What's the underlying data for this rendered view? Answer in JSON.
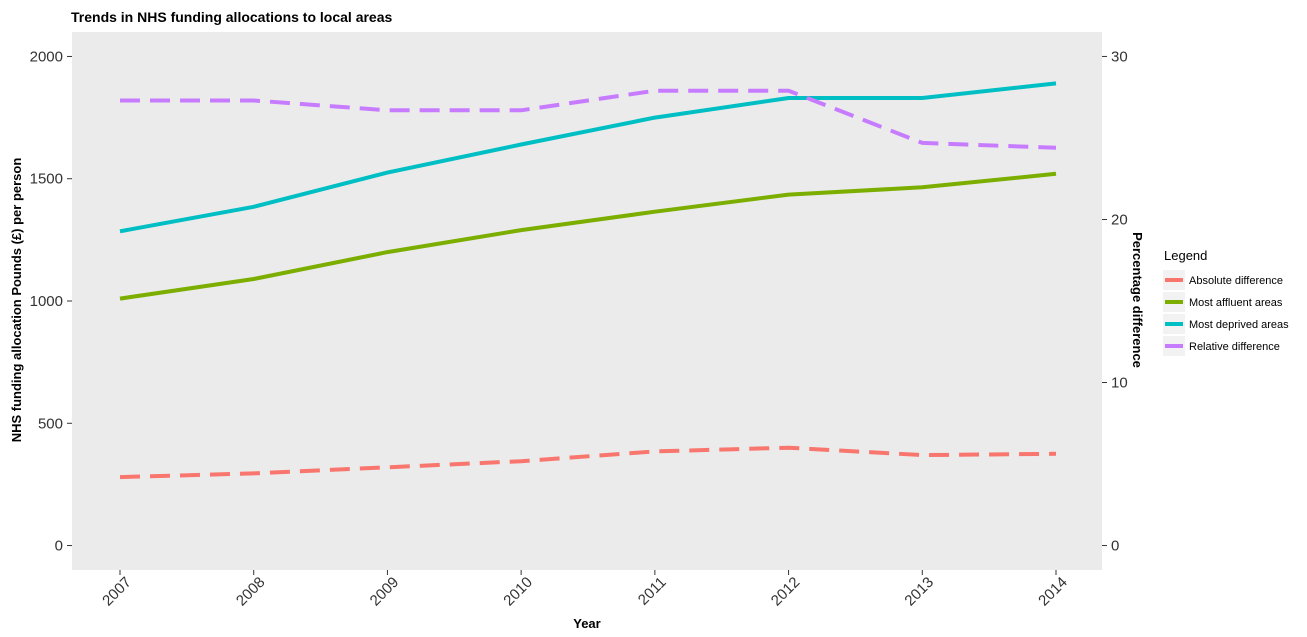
{
  "chart_data": {
    "type": "line",
    "title": "Trends in NHS funding allocations to local areas",
    "xlabel": "Year",
    "ylabel_left": "NHS funding allocation Pounds (£) per person",
    "ylabel_right": "Percentage difference",
    "x": [
      "2007",
      "2008",
      "2009",
      "2010",
      "2011",
      "2012",
      "2013",
      "2014"
    ],
    "ylim_left": [
      -100,
      2100
    ],
    "ylim_right": [
      -1.5,
      31.5
    ],
    "yticks_left": [
      0,
      500,
      1000,
      1500,
      2000
    ],
    "yticks_right": [
      0,
      10,
      20,
      30
    ],
    "grid": false,
    "legend": {
      "title": "Legend",
      "position": "right"
    },
    "series": [
      {
        "name": "Absolute difference",
        "axis": "left",
        "style": "dashed",
        "color": "#F8766D",
        "values": [
          280,
          295,
          320,
          345,
          385,
          400,
          370,
          375
        ]
      },
      {
        "name": "Most affluent areas",
        "axis": "left",
        "style": "solid",
        "color": "#7CAE00",
        "values": [
          1010,
          1090,
          1200,
          1290,
          1365,
          1435,
          1465,
          1520
        ]
      },
      {
        "name": "Most deprived areas",
        "axis": "left",
        "style": "solid",
        "color": "#00BFC4",
        "values": [
          1285,
          1385,
          1525,
          1640,
          1750,
          1830,
          1830,
          1890
        ]
      },
      {
        "name": "Relative difference",
        "axis": "right",
        "style": "dashed",
        "color": "#C77CFF",
        "values": [
          27.3,
          27.3,
          26.7,
          26.7,
          27.9,
          27.9,
          24.7,
          24.4
        ]
      }
    ]
  }
}
